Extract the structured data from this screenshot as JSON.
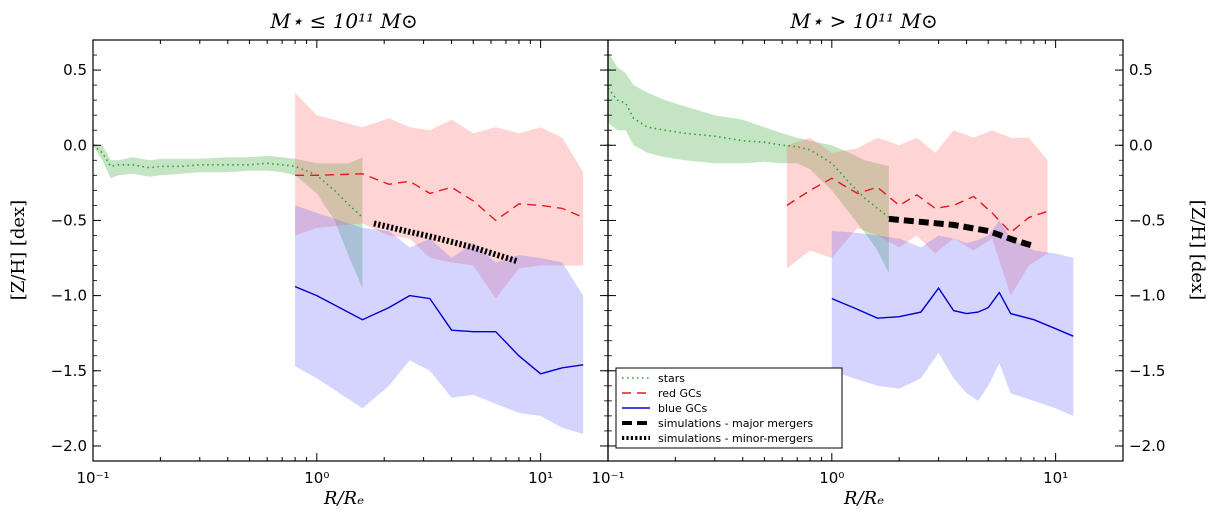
{
  "chart_data": [
    {
      "type": "line",
      "title": "M⋆ ≤ 10¹¹ M⊙",
      "xlabel": "R/Rₑ",
      "ylabel": "[Z/H] [dex]",
      "xscale": "log",
      "xlim": [
        0.1,
        20
      ],
      "ylim": [
        -2.1,
        0.7
      ],
      "x_ticks": [
        {
          "value": 0.1,
          "label": "10⁻¹"
        },
        {
          "value": 1,
          "label": "10⁰"
        },
        {
          "value": 10,
          "label": "10¹"
        }
      ],
      "y_ticks": [
        {
          "value": 0.5,
          "label": "0.5"
        },
        {
          "value": 0.0,
          "label": "0.0"
        },
        {
          "value": -0.5,
          "label": "−0.5"
        },
        {
          "value": -1.0,
          "label": "−1.0"
        },
        {
          "value": -1.5,
          "label": "−1.5"
        },
        {
          "value": -2.0,
          "label": "−2.0"
        }
      ],
      "series": [
        {
          "name": "stars",
          "style": "dotted",
          "color": "#2ca02c",
          "band_color": "#2ca02c",
          "x": [
            0.1,
            0.11,
            0.12,
            0.13,
            0.15,
            0.18,
            0.2,
            0.25,
            0.3,
            0.4,
            0.5,
            0.6,
            0.7,
            0.8,
            1.0,
            1.2,
            1.4,
            1.6
          ],
          "y": [
            0.0,
            -0.05,
            -0.14,
            -0.13,
            -0.13,
            -0.15,
            -0.14,
            -0.14,
            -0.13,
            -0.13,
            -0.13,
            -0.12,
            -0.13,
            -0.14,
            -0.2,
            -0.3,
            -0.4,
            -0.48
          ],
          "upper": [
            0.0,
            0.0,
            -0.1,
            -0.1,
            -0.08,
            -0.1,
            -0.09,
            -0.09,
            -0.09,
            -0.08,
            -0.08,
            -0.07,
            -0.08,
            -0.09,
            -0.12,
            -0.12,
            -0.12,
            -0.08
          ],
          "lower": [
            0.0,
            -0.1,
            -0.22,
            -0.2,
            -0.19,
            -0.21,
            -0.2,
            -0.19,
            -0.18,
            -0.18,
            -0.17,
            -0.17,
            -0.18,
            -0.2,
            -0.32,
            -0.5,
            -0.75,
            -0.95
          ]
        },
        {
          "name": "red GCs",
          "style": "dashed",
          "color": "#e41a1c",
          "band_color": "#ff6666",
          "x": [
            0.8,
            1.0,
            1.6,
            2.1,
            2.6,
            3.2,
            4.0,
            5.0,
            6.3,
            8.0,
            10.0,
            12.5,
            15.5
          ],
          "y": [
            -0.2,
            -0.2,
            -0.19,
            -0.26,
            -0.24,
            -0.32,
            -0.28,
            -0.37,
            -0.5,
            -0.39,
            -0.4,
            -0.42,
            -0.48
          ],
          "upper": [
            0.35,
            0.2,
            0.12,
            0.18,
            0.12,
            0.1,
            0.17,
            0.08,
            0.12,
            0.08,
            0.12,
            0.05,
            -0.18
          ],
          "lower": [
            -0.6,
            -0.55,
            -0.52,
            -0.6,
            -0.62,
            -0.75,
            -0.78,
            -0.8,
            -1.02,
            -0.82,
            -0.8,
            -0.8,
            -0.8
          ]
        },
        {
          "name": "blue GCs",
          "style": "solid",
          "color": "#0000cc",
          "band_color": "#6666ff",
          "x": [
            0.8,
            1.0,
            1.6,
            2.1,
            2.6,
            3.2,
            4.0,
            5.0,
            6.3,
            8.0,
            10.0,
            12.5,
            15.5
          ],
          "y": [
            -0.94,
            -1.0,
            -1.16,
            -1.08,
            -1.0,
            -1.02,
            -1.23,
            -1.24,
            -1.24,
            -1.4,
            -1.52,
            -1.48,
            -1.46
          ],
          "upper": [
            -0.4,
            -0.45,
            -0.55,
            -0.57,
            -0.68,
            -0.62,
            -0.75,
            -0.65,
            -0.78,
            -0.73,
            -0.75,
            -0.78,
            -1.0
          ],
          "lower": [
            -1.47,
            -1.55,
            -1.75,
            -1.6,
            -1.43,
            -1.5,
            -1.68,
            -1.66,
            -1.72,
            -1.78,
            -1.8,
            -1.88,
            -1.92
          ]
        },
        {
          "name": "simulations - minor-mergers",
          "style": "minor-dotted",
          "color": "#000000",
          "x": [
            1.8,
            2.5,
            3.5,
            5.0,
            7.8
          ],
          "y": [
            -0.52,
            -0.57,
            -0.62,
            -0.68,
            -0.77
          ]
        }
      ]
    },
    {
      "type": "line",
      "title": "M⋆ > 10¹¹ M⊙",
      "xlabel": "R/Rₑ",
      "ylabel": "[Z/H] [dex]",
      "xscale": "log",
      "xlim": [
        0.1,
        20
      ],
      "ylim": [
        -2.1,
        0.7
      ],
      "x_ticks": [
        {
          "value": 0.1,
          "label": "10⁻¹"
        },
        {
          "value": 1,
          "label": "10⁰"
        },
        {
          "value": 10,
          "label": "10¹"
        }
      ],
      "y_ticks": [
        {
          "value": 0.5,
          "label": "0.5"
        },
        {
          "value": 0.0,
          "label": "0.0"
        },
        {
          "value": -0.5,
          "label": "−0.5"
        },
        {
          "value": -1.0,
          "label": "−1.0"
        },
        {
          "value": -1.5,
          "label": "−1.5"
        },
        {
          "value": -2.0,
          "label": "−2.0"
        }
      ],
      "series": [
        {
          "name": "stars",
          "style": "dotted",
          "color": "#2ca02c",
          "band_color": "#2ca02c",
          "x": [
            0.1,
            0.11,
            0.12,
            0.13,
            0.15,
            0.18,
            0.22,
            0.3,
            0.4,
            0.5,
            0.6,
            0.7,
            0.8,
            1.0,
            1.2,
            1.4,
            1.6,
            1.8
          ],
          "y": [
            0.38,
            0.3,
            0.28,
            0.18,
            0.12,
            0.1,
            0.08,
            0.06,
            0.03,
            0.02,
            0.0,
            -0.01,
            -0.03,
            -0.12,
            -0.25,
            -0.35,
            -0.42,
            -0.48
          ],
          "upper": [
            0.62,
            0.52,
            0.48,
            0.4,
            0.35,
            0.3,
            0.26,
            0.2,
            0.17,
            0.12,
            0.08,
            0.05,
            0.03,
            0.0,
            -0.05,
            -0.1,
            -0.12,
            -0.14
          ],
          "lower": [
            0.15,
            0.1,
            0.1,
            0.0,
            -0.05,
            -0.08,
            -0.1,
            -0.12,
            -0.12,
            -0.11,
            -0.12,
            -0.12,
            -0.16,
            -0.3,
            -0.45,
            -0.58,
            -0.7,
            -0.85
          ]
        },
        {
          "name": "red GCs",
          "style": "dashed",
          "color": "#e41a1c",
          "band_color": "#ff6666",
          "x": [
            0.63,
            0.8,
            1.0,
            1.3,
            1.6,
            2.0,
            2.4,
            2.9,
            3.5,
            4.3,
            5.2,
            6.3,
            7.6,
            9.2
          ],
          "y": [
            -0.4,
            -0.3,
            -0.22,
            -0.32,
            -0.28,
            -0.4,
            -0.33,
            -0.42,
            -0.4,
            -0.34,
            -0.45,
            -0.58,
            -0.48,
            -0.44
          ],
          "upper": [
            0.0,
            0.05,
            -0.05,
            -0.02,
            0.05,
            0.0,
            0.05,
            -0.05,
            0.1,
            0.05,
            0.1,
            0.05,
            0.05,
            -0.1
          ],
          "lower": [
            -0.82,
            -0.7,
            -0.75,
            -0.55,
            -0.6,
            -0.68,
            -0.6,
            -0.72,
            -0.62,
            -0.7,
            -0.62,
            -1.0,
            -0.8,
            -0.72
          ]
        },
        {
          "name": "blue GCs",
          "style": "solid",
          "color": "#0000cc",
          "band_color": "#6666ff",
          "x": [
            1.0,
            1.25,
            1.6,
            2.0,
            2.5,
            3.0,
            3.5,
            4.0,
            4.5,
            5.0,
            5.6,
            6.3,
            8.0,
            10.0,
            12.0
          ],
          "y": [
            -1.02,
            -1.08,
            -1.15,
            -1.14,
            -1.11,
            -0.95,
            -1.1,
            -1.12,
            -1.11,
            -1.08,
            -0.98,
            -1.12,
            -1.16,
            -1.22,
            -1.27
          ],
          "upper": [
            -0.57,
            -0.58,
            -0.6,
            -0.62,
            -0.68,
            -0.6,
            -0.62,
            -0.65,
            -0.63,
            -0.6,
            -0.5,
            -0.62,
            -0.7,
            -0.72,
            -0.75
          ],
          "lower": [
            -1.5,
            -1.55,
            -1.6,
            -1.62,
            -1.55,
            -1.38,
            -1.55,
            -1.65,
            -1.7,
            -1.6,
            -1.45,
            -1.65,
            -1.7,
            -1.75,
            -1.8
          ]
        },
        {
          "name": "simulations - major mergers",
          "style": "major-dashed",
          "color": "#000000",
          "x": [
            1.8,
            2.5,
            3.5,
            5.0,
            6.5,
            8.0
          ],
          "y": [
            -0.49,
            -0.51,
            -0.53,
            -0.57,
            -0.63,
            -0.67
          ]
        }
      ]
    }
  ],
  "legend": {
    "placement": "bottom-left of right panel",
    "items": [
      {
        "label": "stars",
        "style": "dotted",
        "color": "#2ca02c"
      },
      {
        "label": "red GCs",
        "style": "dashed",
        "color": "#e41a1c"
      },
      {
        "label": "blue GCs",
        "style": "solid",
        "color": "#0000cc"
      },
      {
        "label": "simulations - major mergers",
        "style": "major-dashed",
        "color": "#000000"
      },
      {
        "label": "simulations - minor-mergers",
        "style": "minor-dotted",
        "color": "#000000"
      }
    ]
  }
}
